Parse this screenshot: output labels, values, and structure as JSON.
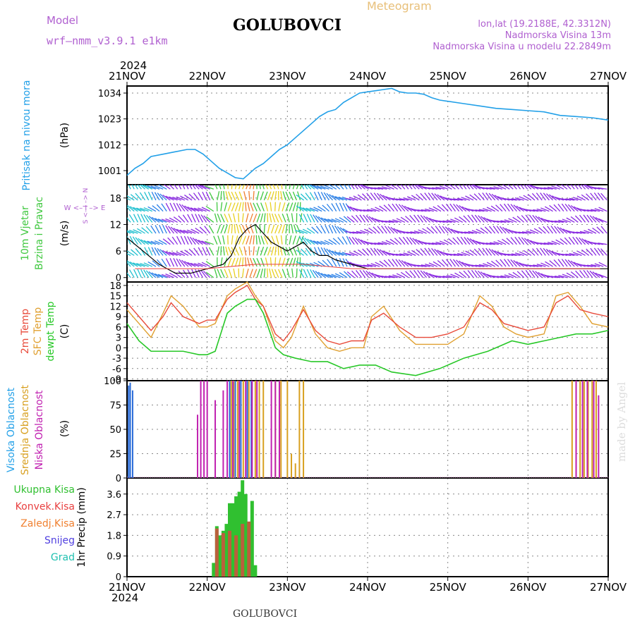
{
  "header": {
    "model_label": "Model",
    "model_name": "wrf–nmm_v3.9.1  e1km",
    "station": "GOLUBOVCI",
    "title": "Meteogram",
    "coords": "lon,lat (19.2188E, 42.3312N)",
    "altitude": "Nadmorska Visina 13m",
    "model_altitude": "Nadmorska Visina u modelu 22.2849m",
    "year": "2024",
    "footer_station": "GOLUBOVCI",
    "watermark": "made by Angel"
  },
  "colors": {
    "pressure": "#22a0e8",
    "t2m": "#e84a3a",
    "sfc": "#e0a030",
    "dew": "#28c828",
    "high_cloud": "#2a6cd8",
    "mid_cloud": "#d8a020",
    "low_cloud": "#c020b0",
    "precip_total": "#30c030",
    "precip_conv": "#e84040",
    "precip_frozen": "#f08030",
    "snow": "#5040e0",
    "hail": "#20c0b0",
    "wind_purple": "#8a2be2",
    "wind_blue": "#2a80e8",
    "wind_cyan": "#20c0d0",
    "wind_green": "#40c840",
    "wind_yellow": "#e8d020",
    "wind_orange": "#f08030",
    "grid": "#888888"
  },
  "chart_data": {
    "type": "line",
    "x_ticks": [
      "21NOV",
      "22NOV",
      "23NOV",
      "24NOV",
      "25NOV",
      "26NOV",
      "27NOV"
    ],
    "xlim_days": [
      0,
      6
    ],
    "panels": [
      {
        "id": "pressure",
        "ylabel_outer": "Pritisak na nivou mora",
        "ylabel_unit": "(hPa)",
        "yticks": [
          1001,
          1012,
          1023,
          1034
        ],
        "ylim": [
          995,
          1037
        ],
        "series": [
          {
            "key": "pressure",
            "x": [
              0,
              0.1,
              0.2,
              0.3,
              0.45,
              0.6,
              0.75,
              0.85,
              0.95,
              1.05,
              1.15,
              1.25,
              1.35,
              1.45,
              1.5,
              1.6,
              1.7,
              1.8,
              1.9,
              2.0,
              2.1,
              2.2,
              2.3,
              2.4,
              2.5,
              2.6,
              2.7,
              2.8,
              2.9,
              3.0,
              3.1,
              3.2,
              3.3,
              3.4,
              3.5,
              3.6,
              3.7,
              3.8,
              3.9,
              4.0,
              4.2,
              4.4,
              4.6,
              4.8,
              5.0,
              5.2,
              5.4,
              5.6,
              5.8,
              6.0
            ],
            "y": [
              999,
              1002,
              1004,
              1007,
              1008,
              1009,
              1010,
              1010,
              1008,
              1005,
              1002,
              1000,
              998,
              997.5,
              999,
              1002,
              1004,
              1007,
              1010,
              1012,
              1015,
              1018,
              1021,
              1024,
              1026,
              1027,
              1030,
              1032,
              1034,
              1034.5,
              1035,
              1035.5,
              1036,
              1034.5,
              1034,
              1034,
              1033.5,
              1032,
              1031,
              1030.5,
              1029.5,
              1028.5,
              1027.5,
              1027,
              1026.5,
              1026,
              1024.5,
              1024,
              1023.5,
              1022.5
            ]
          }
        ]
      },
      {
        "id": "wind",
        "ylabel_outer": "10m Vjetar  Brzina i Pravac",
        "ylabel_unit": "(m/s)",
        "direction_key": "W  <– I –>  E",
        "direction_key_ns": "S <– I –> N",
        "yticks": [
          0,
          6,
          12,
          18
        ],
        "ylim": [
          -1,
          21
        ],
        "series": [
          {
            "key": "speed",
            "x": [
              0,
              0.2,
              0.4,
              0.6,
              0.8,
              1.0,
              1.2,
              1.3,
              1.4,
              1.5,
              1.6,
              1.7,
              1.8,
              1.9,
              2.0,
              2.1,
              2.2,
              2.3,
              2.4,
              2.5,
              2.6,
              2.8,
              3.0,
              3.5,
              4.0,
              5.0,
              6.0
            ],
            "y": [
              9,
              6,
              3,
              1,
              1,
              2,
              3,
              5,
              9,
              11,
              12,
              10,
              8,
              7,
              6,
              7,
              8,
              6,
              5,
              5,
              4,
              3,
              2,
              2,
              2,
              2,
              2
            ]
          }
        ]
      },
      {
        "id": "temperature",
        "ylabel_outer": [
          "2m Temp",
          "SFC Temp",
          "dewpt Temp"
        ],
        "ylabel_unit": "(C)",
        "yticks": [
          -9,
          -6,
          -3,
          0,
          3,
          6,
          9,
          12,
          15,
          18
        ],
        "ylim": [
          -9.5,
          19
        ],
        "series": [
          {
            "key": "t2m",
            "name": "2m Temp",
            "x": [
              0,
              0.15,
              0.3,
              0.45,
              0.55,
              0.7,
              0.9,
              1.0,
              1.1,
              1.25,
              1.35,
              1.5,
              1.6,
              1.7,
              1.85,
              1.95,
              2.05,
              2.2,
              2.35,
              2.5,
              2.65,
              2.8,
              2.95,
              3.05,
              3.2,
              3.4,
              3.6,
              3.8,
              4.0,
              4.2,
              4.4,
              4.55,
              4.7,
              4.85,
              5.0,
              5.2,
              5.35,
              5.5,
              5.65,
              5.8,
              6.0
            ],
            "y": [
              13,
              9,
              5,
              9,
              13,
              9,
              7,
              8,
              8,
              14,
              16,
              18,
              14,
              12,
              4,
              2,
              5,
              11,
              5,
              2,
              1,
              2,
              2,
              8,
              10,
              6,
              3,
              3,
              4,
              6,
              13,
              11,
              7,
              6,
              5,
              6,
              13,
              15,
              11,
              10,
              9
            ]
          },
          {
            "key": "sfc",
            "name": "SFC Temp",
            "x": [
              0,
              0.15,
              0.3,
              0.45,
              0.55,
              0.7,
              0.9,
              1.0,
              1.1,
              1.25,
              1.35,
              1.5,
              1.6,
              1.7,
              1.85,
              1.95,
              2.05,
              2.2,
              2.35,
              2.5,
              2.65,
              2.8,
              2.95,
              3.05,
              3.2,
              3.4,
              3.6,
              3.8,
              4.0,
              4.2,
              4.4,
              4.55,
              4.7,
              4.85,
              5.0,
              5.2,
              5.35,
              5.5,
              5.65,
              5.8,
              6.0
            ],
            "y": [
              11,
              7,
              3,
              10,
              15,
              12,
              6,
              6,
              7,
              15,
              17,
              19,
              15,
              12,
              2,
              0,
              3,
              12,
              4,
              0,
              -1,
              0,
              0,
              9,
              12,
              5,
              1,
              1,
              1,
              4,
              15,
              12,
              6,
              4,
              3,
              4,
              15,
              16,
              12,
              7,
              6
            ]
          },
          {
            "key": "dew",
            "name": "dewpt Temp",
            "x": [
              0,
              0.15,
              0.3,
              0.5,
              0.7,
              0.9,
              1.0,
              1.1,
              1.25,
              1.35,
              1.5,
              1.6,
              1.7,
              1.85,
              1.95,
              2.1,
              2.3,
              2.5,
              2.7,
              2.9,
              3.1,
              3.3,
              3.6,
              3.9,
              4.2,
              4.5,
              4.8,
              5.0,
              5.2,
              5.4,
              5.6,
              5.8,
              6.0
            ],
            "y": [
              7,
              2,
              -1,
              -1,
              -1,
              -2,
              -2,
              -1,
              10,
              12,
              14,
              14,
              10,
              0,
              -2,
              -3,
              -4,
              -4,
              -6,
              -5,
              -5,
              -7,
              -8,
              -6,
              -3,
              -1,
              2,
              1,
              2,
              3,
              4,
              4,
              5
            ]
          }
        ]
      },
      {
        "id": "cloud",
        "ylabel_outer": [
          "Visoka Oblacnost",
          "Srednja Oblacnost",
          "Niska Oblacnost"
        ],
        "ylabel_unit": "(%)",
        "yticks": [
          0,
          25,
          50,
          75,
          100
        ],
        "ylim": [
          0,
          100
        ],
        "series": [
          {
            "key": "high",
            "name": "Visoka Oblacnost",
            "x": [
              0.02,
              0.04,
              0.07,
              1.28,
              1.35,
              1.42,
              1.5,
              1.55
            ],
            "y": [
              95,
              98,
              90,
              100,
              100,
              100,
              100,
              100
            ]
          },
          {
            "key": "mid",
            "name": "Srednja Oblacnost",
            "x": [
              1.3,
              1.33,
              1.38,
              1.45,
              1.52,
              1.6,
              1.65,
              1.7,
              1.85,
              1.92,
              2.0,
              2.05,
              2.1,
              2.15,
              2.2,
              5.55,
              5.6,
              5.65,
              5.7,
              5.75,
              5.8,
              5.85
            ],
            "y": [
              100,
              100,
              100,
              100,
              100,
              100,
              100,
              100,
              100,
              100,
              100,
              25,
              15,
              100,
              100,
              100,
              100,
              100,
              100,
              100,
              100,
              100
            ]
          },
          {
            "key": "low",
            "name": "Niska Oblacnost",
            "x": [
              0.88,
              0.92,
              0.96,
              1.0,
              1.1,
              1.2,
              1.25,
              1.32,
              1.4,
              1.48,
              1.56,
              1.62,
              1.8,
              1.85,
              1.9,
              5.6,
              5.68,
              5.74,
              5.82,
              5.88
            ],
            "y": [
              65,
              100,
              100,
              100,
              80,
              90,
              100,
              100,
              100,
              100,
              100,
              100,
              100,
              100,
              100,
              100,
              100,
              100,
              100,
              85
            ]
          }
        ]
      },
      {
        "id": "precip",
        "ylabel_outer": "1hr Precip (mm)",
        "legend": [
          "Ukupna Kisa",
          "Konvek.Kisa",
          "Zaledj.Kisa",
          "Snijeg",
          "Grad"
        ],
        "yticks": [
          0,
          0.9,
          1.8,
          2.7,
          3.6
        ],
        "ylim": [
          0,
          4.3
        ],
        "series": [
          {
            "key": "total",
            "name": "Ukupna Kisa",
            "x": [
              1.08,
              1.12,
              1.16,
              1.2,
              1.24,
              1.28,
              1.32,
              1.36,
              1.4,
              1.44,
              1.48,
              1.52,
              1.56,
              1.6
            ],
            "y": [
              0.6,
              2.2,
              1.8,
              2.0,
              2.3,
              3.2,
              3.2,
              3.5,
              3.7,
              4.2,
              3.6,
              2.4,
              3.3,
              0.5
            ]
          },
          {
            "key": "conv",
            "name": "Konvek.Kisa",
            "x": [
              1.12,
              1.2,
              1.28,
              1.36,
              1.44,
              1.52
            ],
            "y": [
              2.1,
              1.9,
              2.0,
              1.8,
              2.3,
              2.4
            ]
          }
        ]
      }
    ]
  }
}
